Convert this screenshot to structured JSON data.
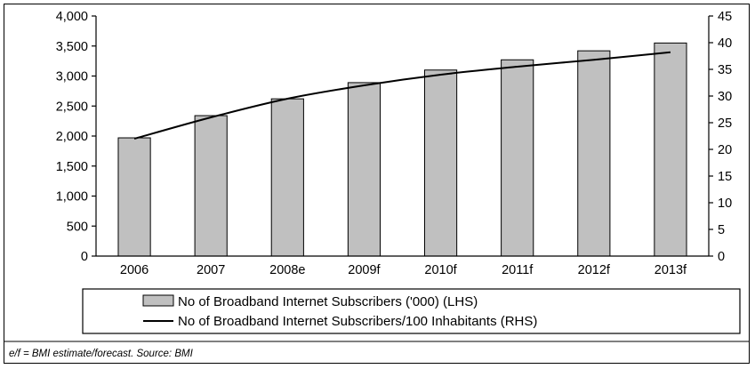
{
  "chart_data": {
    "type": "bar",
    "categories": [
      "2006",
      "2007",
      "2008e",
      "2009f",
      "2010f",
      "2011f",
      "2012f",
      "2013f"
    ],
    "series": [
      {
        "name": "No of Broadband Internet Subscribers ('000) (LHS)",
        "type": "bar",
        "axis": "left",
        "values": [
          1970,
          2340,
          2620,
          2890,
          3100,
          3270,
          3420,
          3550
        ],
        "color": "#c0c0c0"
      },
      {
        "name": "No of Broadband Internet Subscribers/100 Inhabitants (RHS)",
        "type": "line",
        "axis": "right",
        "values": [
          22,
          26,
          29.5,
          32,
          34,
          35.5,
          36.8,
          38.2
        ],
        "color": "#000000"
      }
    ],
    "ylim_left": [
      0,
      4000
    ],
    "yticks_left": [
      "0",
      "500",
      "1,000",
      "1,500",
      "2,000",
      "2,500",
      "3,000",
      "3,500",
      "4,000"
    ],
    "ylim_right": [
      0,
      45
    ],
    "yticks_right": [
      "0",
      "5",
      "10",
      "15",
      "20",
      "25",
      "30",
      "35",
      "40",
      "45"
    ],
    "title": "",
    "xlabel": "",
    "ylabel": "",
    "grid": false,
    "legend_position": "bottom"
  },
  "footnote": "e/f = BMI estimate/forecast. Source: BMI"
}
